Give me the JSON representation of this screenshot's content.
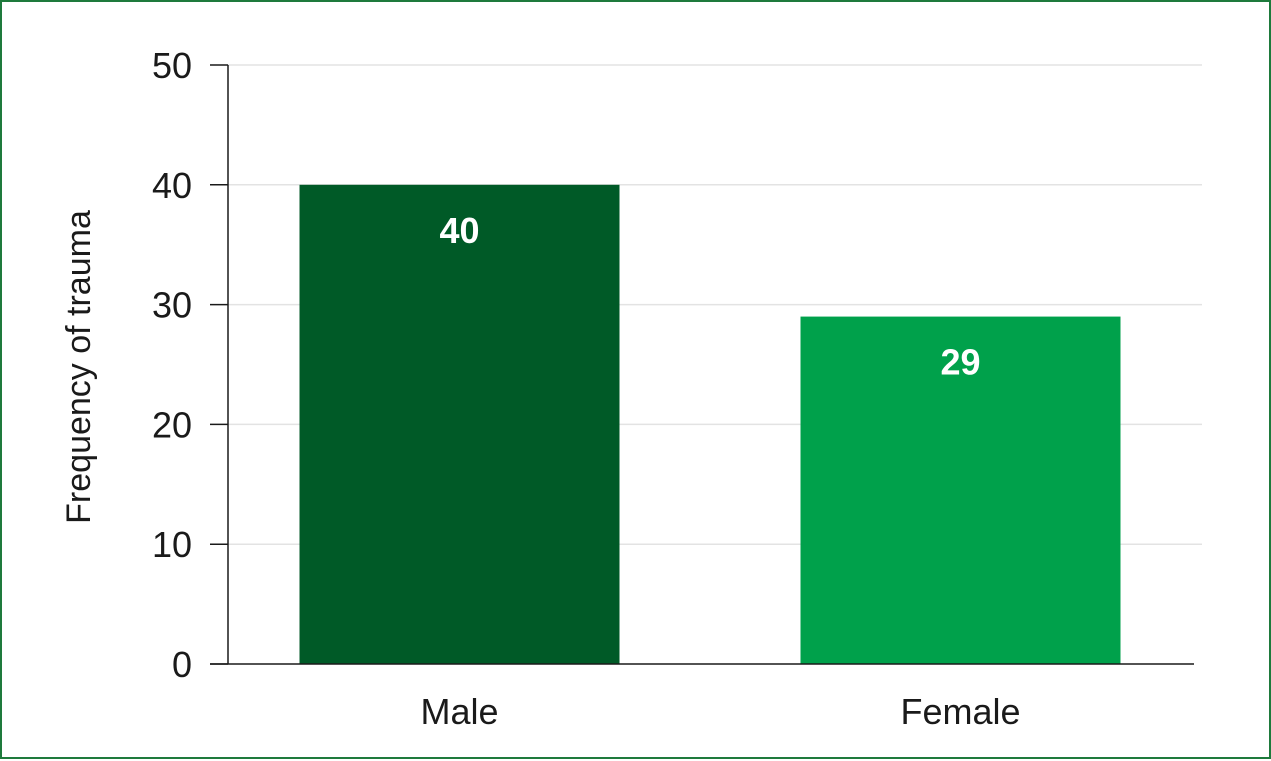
{
  "chart_data": {
    "type": "bar",
    "title": "",
    "xlabel": "",
    "ylabel": "Frequency of trauma",
    "categories": [
      "Male",
      "Female"
    ],
    "values": [
      40,
      29
    ],
    "data_labels": [
      "40",
      "29"
    ],
    "bar_colors": [
      "#005a27",
      "#00a14b"
    ],
    "ylim": [
      0,
      50
    ],
    "yticks": [
      0,
      10,
      20,
      30,
      40,
      50
    ],
    "ytick_labels": [
      "0",
      "10",
      "20",
      "30",
      "40",
      "50"
    ],
    "grid": true,
    "legend": "none"
  },
  "colors": {
    "border": "#1e7a3c",
    "grid": "#e3e3e3",
    "axis": "#1a1a1a"
  }
}
